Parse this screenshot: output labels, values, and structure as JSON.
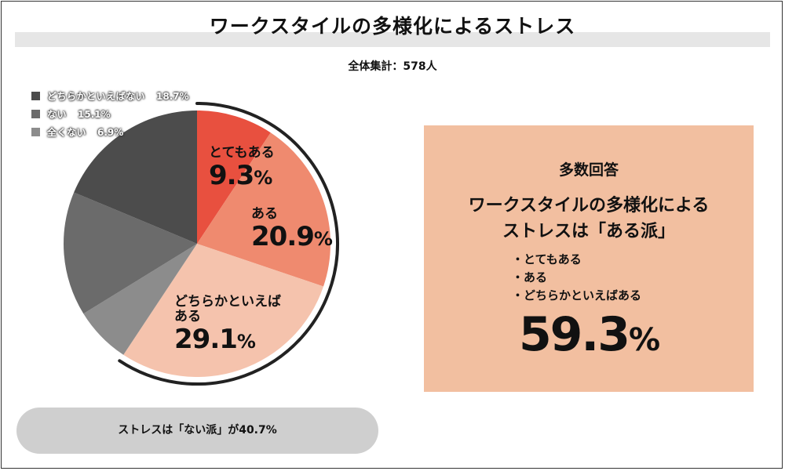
{
  "title": "ワークスタイルの多様化によるストレス",
  "subtitle": "全体集計：578人",
  "chart_data": {
    "type": "pie",
    "title": "ワークスタイルの多様化によるストレス",
    "total_label": "全体集計：578人",
    "slices": [
      {
        "label": "とてもある",
        "value": 9.3,
        "display": "9.3",
        "color": "#e8503f"
      },
      {
        "label": "ある",
        "value": 20.9,
        "display": "20.9",
        "color": "#ef8a6f"
      },
      {
        "label": "どちらかといえばある",
        "value": 29.1,
        "display": "29.1",
        "label_lines": [
          "どちらかといえば",
          "ある"
        ],
        "color": "#f5c3ad"
      },
      {
        "label": "全くない",
        "value": 6.9,
        "display": "6.9",
        "color": "#8c8c8c"
      },
      {
        "label": "ない",
        "value": 15.1,
        "display": "15.1",
        "color": "#6b6b6b"
      },
      {
        "label": "どちらかといえばない",
        "value": 18.7,
        "display": "18.7",
        "color": "#4c4c4c"
      }
    ],
    "legend": [
      {
        "label": "どちらかといえばない",
        "value": "18.7%",
        "color": "#4c4c4c"
      },
      {
        "label": "ない",
        "value": "15.1%",
        "color": "#6b6b6b"
      },
      {
        "label": "全くない",
        "value": "6.9%",
        "color": "#8c8c8c"
      }
    ],
    "legend_position": "top-left",
    "percent_sign": "%"
  },
  "callout": {
    "heading": "多数回答",
    "line1": "ワークスタイルの多様化による",
    "line2": "ストレスは「ある派」",
    "bullets": [
      "・とてもある",
      "・ある",
      "・どちらかといえばある"
    ],
    "value": "59.3",
    "unit": "%",
    "bg_color": "#f2bfa0"
  },
  "footer": {
    "text": "ストレスは「ない派」が40.7%"
  }
}
